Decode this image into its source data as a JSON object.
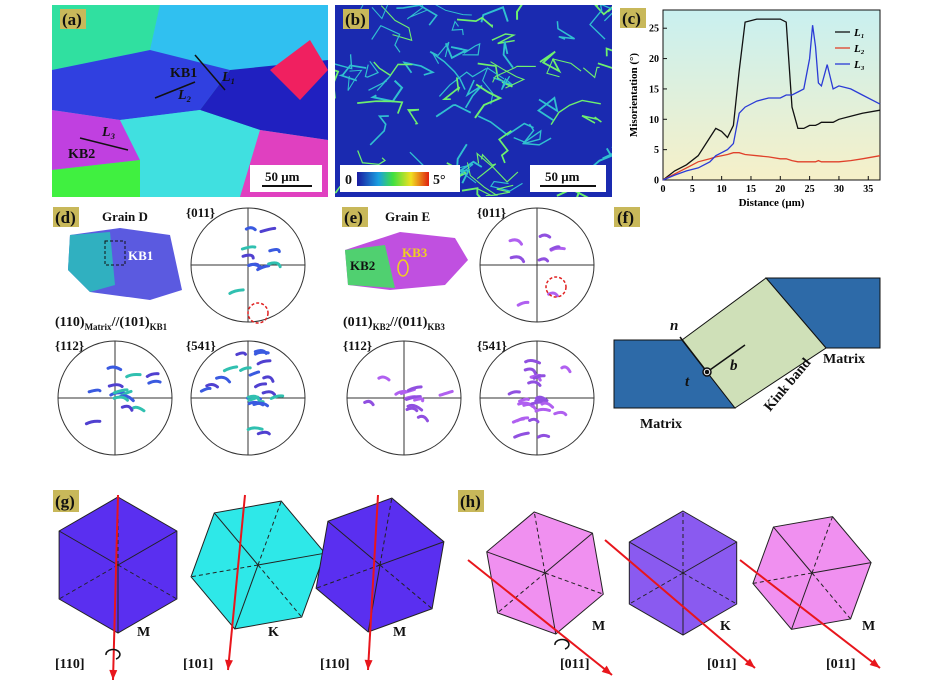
{
  "panels": {
    "a": {
      "label": "(a)",
      "kb1": "KB1",
      "l1": "L₁",
      "l2": "L₂",
      "l3": "L₃",
      "kb2": "KB2",
      "scale": "50 μm"
    },
    "b": {
      "label": "(b)",
      "cmin": "0",
      "cmax": "5°",
      "scale": "50 μm"
    },
    "c": {
      "label": "(c)"
    },
    "d": {
      "label": "(d)",
      "grain": "Grain D",
      "kb": "KB1",
      "pf1": "{011}",
      "pf2": "{112}",
      "pf3": "{541}",
      "rel": [
        "(110)",
        "Matrix",
        "//(101)",
        "KB1"
      ]
    },
    "e": {
      "label": "(e)",
      "grain": "Grain E",
      "kb_a": "KB3",
      "kb_b": "KB2",
      "pf1": "{011}",
      "pf2": "{112}",
      "pf3": "{541}",
      "rel": [
        "(011)",
        "KB2",
        "//(011)",
        "KB3"
      ]
    },
    "f": {
      "label": "(f)",
      "n": "n",
      "b": "b",
      "t": "t",
      "matrix_right": "Matrix",
      "matrix_left": "Matrix",
      "kink": "Kink band"
    },
    "g": {
      "label": "(g)",
      "cubes": [
        {
          "tag": "M",
          "axis": "[110]"
        },
        {
          "tag": "K",
          "axis": "[101]"
        },
        {
          "tag": "M",
          "axis": "[110]"
        }
      ]
    },
    "h": {
      "label": "(h)",
      "cubes": [
        {
          "tag": "M",
          "axis": "[011]"
        },
        {
          "tag": "K",
          "axis": "[011]"
        },
        {
          "tag": "M",
          "axis": "[011]"
        }
      ]
    }
  },
  "chart_data": {
    "type": "line",
    "ylabel": "Misorientation (°)",
    "xlabel": "Distance (μm)",
    "x": [
      0,
      2,
      4,
      6,
      8,
      9,
      10,
      11,
      12,
      13,
      14,
      16,
      18,
      20,
      21,
      22,
      23,
      24,
      25,
      25.5,
      26,
      26.5,
      27,
      28,
      29,
      30,
      32,
      34,
      37
    ],
    "series": [
      {
        "name": "L₁",
        "color": "#111111",
        "values": [
          0,
          1.5,
          2.5,
          4,
          7,
          8.5,
          8,
          7,
          9,
          18,
          26,
          26.5,
          26.5,
          26.5,
          26,
          12,
          8.5,
          8.5,
          9,
          9,
          9,
          9.2,
          9.5,
          9.5,
          9.5,
          10,
          10.5,
          11,
          11.5
        ]
      },
      {
        "name": "L₂",
        "color": "#e0412a",
        "values": [
          0,
          1,
          2,
          3,
          3.5,
          3.8,
          4,
          4.2,
          4.5,
          4.5,
          4.2,
          4,
          3.8,
          3.5,
          3.5,
          3.2,
          3,
          3,
          3,
          3,
          3,
          3.2,
          3,
          3,
          3,
          3,
          3.2,
          3.5,
          4
        ]
      },
      {
        "name": "L₃",
        "color": "#2b3bd6",
        "values": [
          0,
          0.8,
          1.5,
          2,
          3,
          4,
          4.5,
          5,
          6,
          11,
          12,
          13,
          13.5,
          13.5,
          14,
          14,
          14.5,
          15,
          20,
          25.5,
          22,
          16,
          15.5,
          19,
          15,
          15.5,
          15,
          14,
          12.5
        ]
      }
    ],
    "xlim": [
      0,
      37
    ],
    "ylim": [
      0,
      28
    ],
    "xticks": [
      0,
      5,
      10,
      15,
      20,
      25,
      30,
      35
    ],
    "yticks": [
      0,
      5,
      10,
      15,
      20,
      25
    ]
  }
}
